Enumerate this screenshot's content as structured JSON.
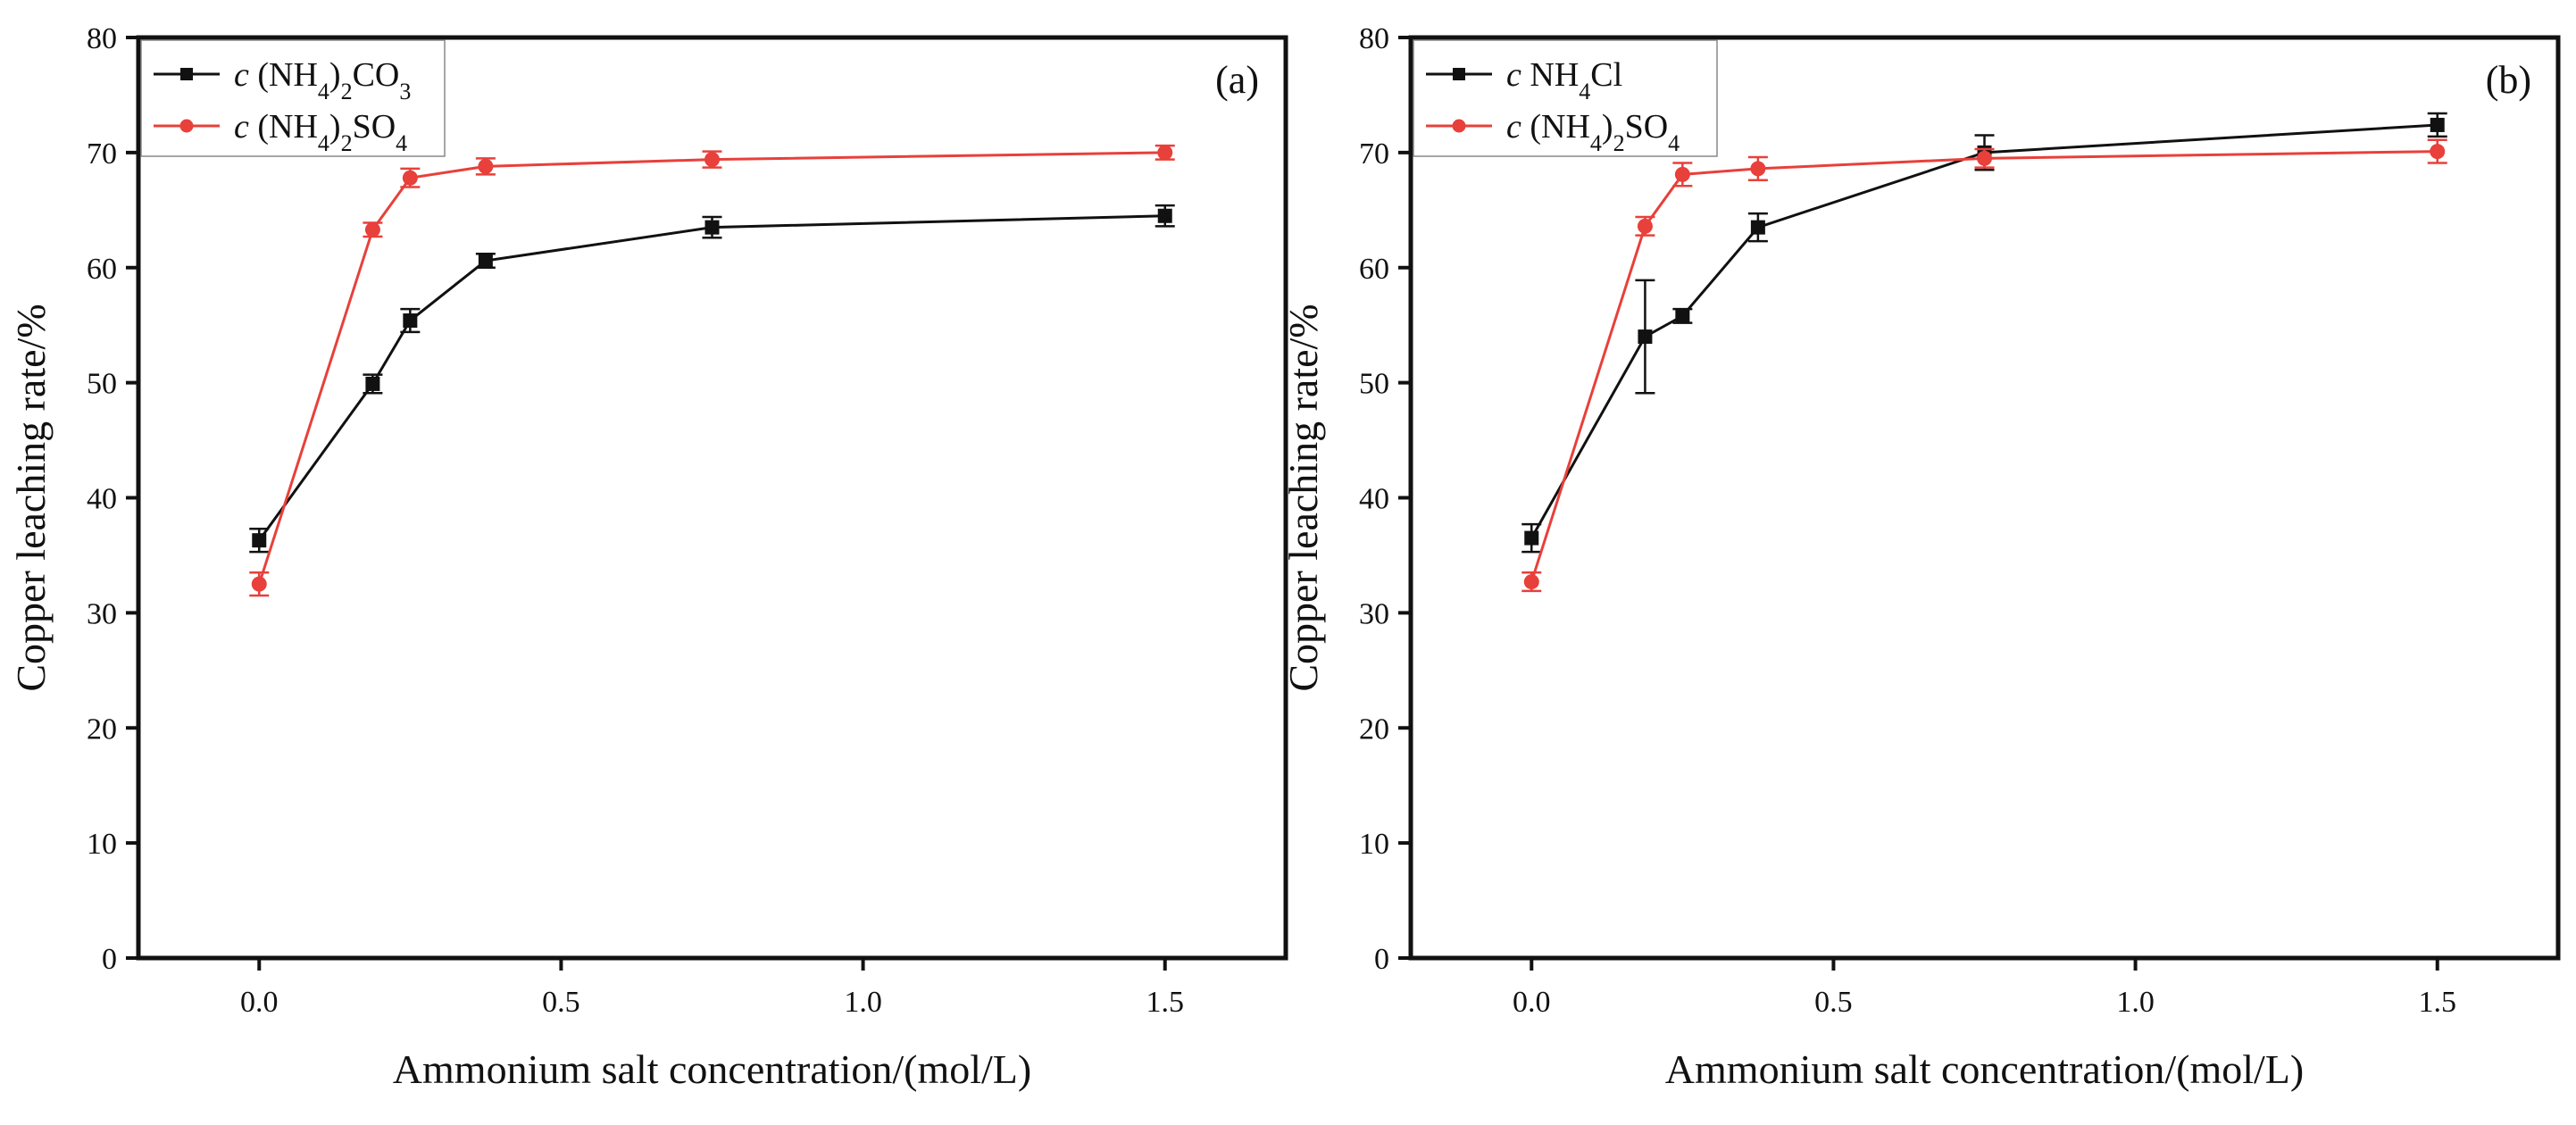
{
  "chart_data": [
    {
      "type": "line",
      "panel_label": "(a)",
      "xlabel": "Ammonium salt concentration/(mol/L)",
      "ylabel": "Copper leaching rate/%",
      "xlim": [
        -0.2,
        1.7
      ],
      "ylim": [
        0,
        80
      ],
      "xticks": [
        0.0,
        0.5,
        1.0,
        1.5
      ],
      "xtick_labels": [
        "0.0",
        "0.5",
        "1.0",
        "1.5"
      ],
      "yticks": [
        0,
        10,
        20,
        30,
        40,
        50,
        60,
        70,
        80
      ],
      "ytick_labels": [
        "0",
        "10",
        "20",
        "30",
        "40",
        "50",
        "60",
        "70",
        "80"
      ],
      "legend_position": "top-left",
      "series": [
        {
          "name": "c (NH4)2CO3",
          "legend": {
            "prefix": "c",
            "parts": [
              [
                "(NH",
                ""
              ],
              [
                "4",
                "sub"
              ],
              [
                ")",
                ""
              ],
              [
                "2",
                "sub"
              ],
              [
                "CO",
                ""
              ],
              [
                "3",
                "sub"
              ]
            ]
          },
          "color": "#111111",
          "marker": "square",
          "x": [
            0.0,
            0.188,
            0.25,
            0.375,
            0.75,
            1.5
          ],
          "y": [
            36.3,
            49.9,
            55.4,
            60.6,
            63.5,
            64.5
          ],
          "err": [
            1.0,
            0.8,
            1.0,
            0.6,
            0.9,
            0.9
          ]
        },
        {
          "name": "c (NH4)2SO4",
          "legend": {
            "prefix": "c",
            "parts": [
              [
                "(NH",
                ""
              ],
              [
                "4",
                "sub"
              ],
              [
                ")",
                ""
              ],
              [
                "2",
                "sub"
              ],
              [
                "SO",
                ""
              ],
              [
                "4",
                "sub"
              ]
            ]
          },
          "color": "#e8403a",
          "marker": "circle",
          "x": [
            0.0,
            0.188,
            0.25,
            0.375,
            0.75,
            1.5
          ],
          "y": [
            32.5,
            63.3,
            67.8,
            68.8,
            69.4,
            70.0
          ],
          "err": [
            1.0,
            0.6,
            0.8,
            0.7,
            0.7,
            0.6
          ]
        }
      ]
    },
    {
      "type": "line",
      "panel_label": "(b)",
      "xlabel": "Ammonium salt concentration/(mol/L)",
      "ylabel": "Copper leaching rate/%",
      "xlim": [
        -0.2,
        1.7
      ],
      "ylim": [
        0,
        80
      ],
      "xticks": [
        0.0,
        0.5,
        1.0,
        1.5
      ],
      "xtick_labels": [
        "0.0",
        "0.5",
        "1.0",
        "1.5"
      ],
      "yticks": [
        0,
        10,
        20,
        30,
        40,
        50,
        60,
        70,
        80
      ],
      "ytick_labels": [
        "0",
        "10",
        "20",
        "30",
        "40",
        "50",
        "60",
        "70",
        "80"
      ],
      "legend_position": "top-left",
      "series": [
        {
          "name": "c NH4Cl",
          "legend": {
            "prefix": "c",
            "parts": [
              [
                "NH",
                ""
              ],
              [
                "4",
                "sub"
              ],
              [
                "Cl",
                ""
              ]
            ]
          },
          "color": "#111111",
          "marker": "square",
          "x": [
            0.0,
            0.188,
            0.25,
            0.375,
            0.75,
            1.5
          ],
          "y": [
            36.5,
            54.0,
            55.8,
            63.5,
            70.0,
            72.4
          ],
          "err": [
            1.2,
            4.9,
            0.6,
            1.2,
            1.5,
            1.0
          ]
        },
        {
          "name": "c (NH4)2SO4",
          "legend": {
            "prefix": "c",
            "parts": [
              [
                "(NH",
                ""
              ],
              [
                "4",
                "sub"
              ],
              [
                ")",
                ""
              ],
              [
                "2",
                "sub"
              ],
              [
                "SO",
                ""
              ],
              [
                "4",
                "sub"
              ]
            ]
          },
          "color": "#e8403a",
          "marker": "circle",
          "x": [
            0.0,
            0.188,
            0.25,
            0.375,
            0.75,
            1.5
          ],
          "y": [
            32.7,
            63.6,
            68.1,
            68.6,
            69.5,
            70.1
          ],
          "err": [
            0.8,
            0.8,
            1.0,
            1.0,
            0.8,
            1.0
          ]
        }
      ]
    }
  ]
}
